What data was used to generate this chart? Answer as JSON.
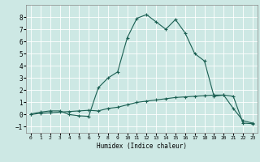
{
  "xlabel": "Humidex (Indice chaleur)",
  "bg_color": "#cde8e4",
  "grid_color": "#b0d8d4",
  "line_color": "#1a5f52",
  "x_upper": [
    0,
    1,
    2,
    3,
    4,
    5,
    6,
    7,
    8,
    9,
    10,
    11,
    12,
    13,
    14,
    15,
    16,
    17,
    18,
    19,
    20,
    21,
    22,
    23
  ],
  "y_upper": [
    0.05,
    0.2,
    0.3,
    0.3,
    0.0,
    -0.1,
    -0.15,
    2.2,
    3.0,
    3.5,
    6.3,
    7.9,
    8.2,
    7.6,
    7.0,
    7.8,
    6.7,
    5.0,
    4.4,
    1.5,
    1.6,
    0.5,
    -0.5,
    -0.7
  ],
  "x_lower": [
    0,
    1,
    2,
    3,
    4,
    5,
    6,
    7,
    8,
    9,
    10,
    11,
    12,
    13,
    14,
    15,
    16,
    17,
    18,
    19,
    20,
    21,
    22,
    23
  ],
  "y_lower": [
    0.0,
    0.1,
    0.15,
    0.2,
    0.25,
    0.3,
    0.35,
    0.3,
    0.5,
    0.6,
    0.8,
    1.0,
    1.1,
    1.2,
    1.3,
    1.4,
    1.45,
    1.5,
    1.55,
    1.6,
    1.6,
    1.5,
    -0.7,
    -0.75
  ],
  "xlim": [
    -0.5,
    23.5
  ],
  "ylim": [
    -1.5,
    9.0
  ],
  "yticks": [
    -1,
    0,
    1,
    2,
    3,
    4,
    5,
    6,
    7,
    8
  ],
  "xticks": [
    0,
    1,
    2,
    3,
    4,
    5,
    6,
    7,
    8,
    9,
    10,
    11,
    12,
    13,
    14,
    15,
    16,
    17,
    18,
    19,
    20,
    21,
    22,
    23
  ]
}
